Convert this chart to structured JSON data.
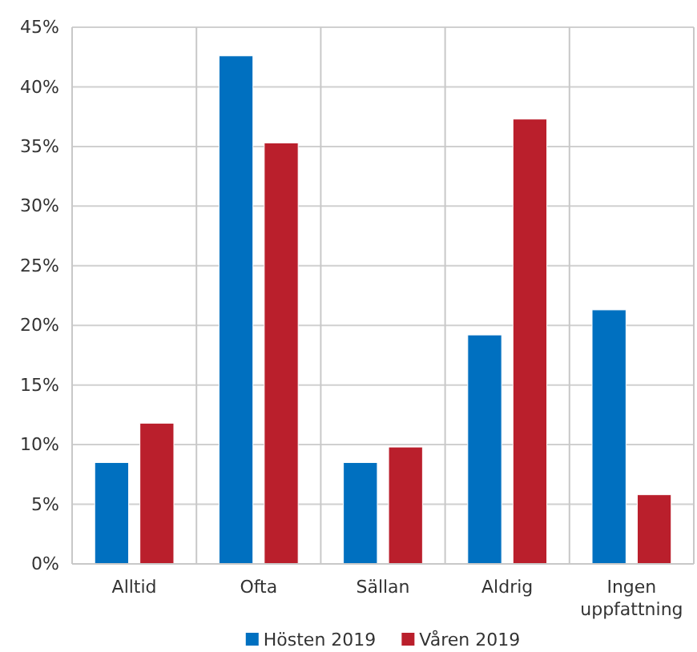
{
  "chart_data": {
    "type": "bar",
    "categories": [
      "Alltid",
      "Ofta",
      "Sällan",
      "Aldrig",
      "Ingen uppfattning"
    ],
    "series": [
      {
        "name": "Hösten 2019",
        "color": "#0070c0",
        "values": [
          8.5,
          42.6,
          8.5,
          19.2,
          21.3
        ]
      },
      {
        "name": "Våren 2019",
        "color": "#ba1f2c",
        "values": [
          11.8,
          35.3,
          9.8,
          37.3,
          5.8
        ]
      }
    ],
    "ylim": [
      0,
      45
    ],
    "yticks": [
      {
        "value": 0,
        "label": "0%"
      },
      {
        "value": 5,
        "label": "5%"
      },
      {
        "value": 10,
        "label": "10%"
      },
      {
        "value": 15,
        "label": "15%"
      },
      {
        "value": 20,
        "label": "20%"
      },
      {
        "value": 25,
        "label": "25%"
      },
      {
        "value": 30,
        "label": "30%"
      },
      {
        "value": 35,
        "label": "35%"
      },
      {
        "value": 40,
        "label": "40%"
      },
      {
        "value": 45,
        "label": "45%"
      }
    ],
    "grid": true,
    "legend": "bottom"
  }
}
